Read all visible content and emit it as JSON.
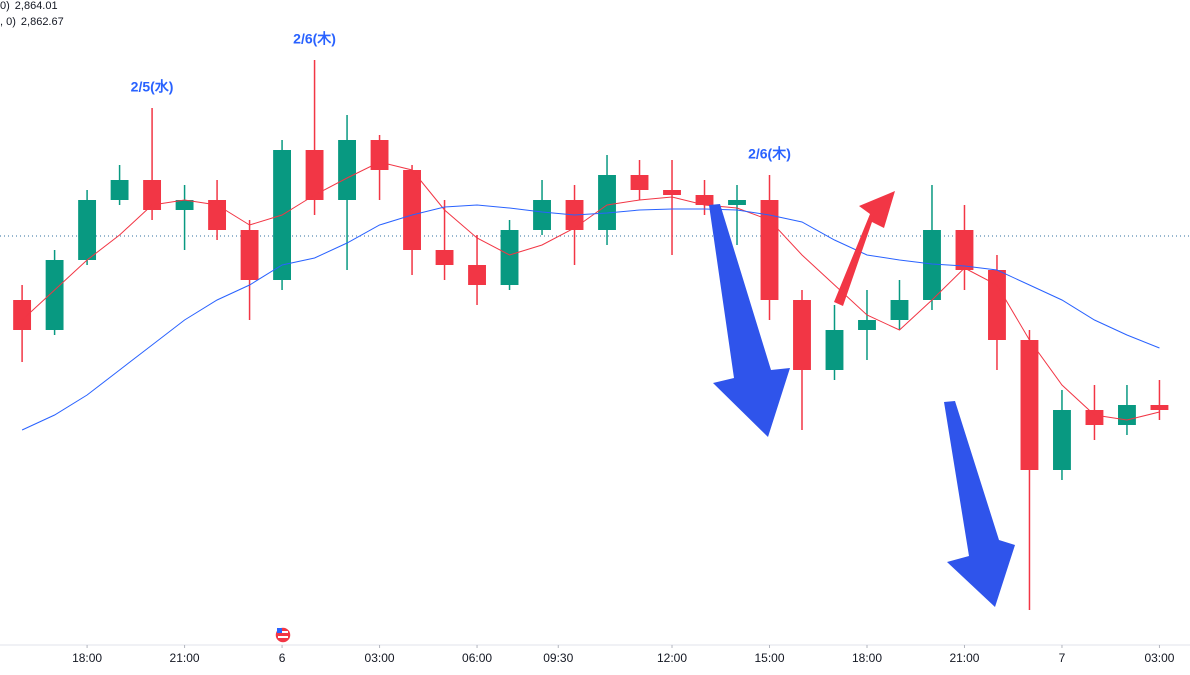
{
  "chart_data": {
    "type": "candlestick",
    "legend": [
      {
        "label": "0)",
        "value": "2,864.01",
        "color": "#f23645"
      },
      {
        "label": ", 0)",
        "value": "2,862.67",
        "color": "#2962ff"
      }
    ],
    "annotations": [
      {
        "text": "2/5(水)",
        "x": 5,
        "y": 2881.2
      },
      {
        "text": "2/6(木)",
        "x": 10,
        "y": 2886
      },
      {
        "text": "2/6(木)",
        "x": 24,
        "y": 2874.5
      }
    ],
    "up_color": "#089981",
    "down_color": "#f23645",
    "x": [
      1,
      2,
      3,
      4,
      5,
      6,
      7,
      8,
      9,
      10,
      11,
      12,
      13,
      14,
      15,
      16,
      17,
      18,
      19,
      20,
      21,
      22,
      23,
      24,
      25,
      26,
      27,
      28,
      29,
      30,
      31,
      32,
      33,
      34,
      35,
      36
    ],
    "candles": [
      [
        2862,
        2863.5,
        2855.8,
        2859
      ],
      [
        2859,
        2867,
        2858.5,
        2866
      ],
      [
        2866,
        2873,
        2865.5,
        2872
      ],
      [
        2872,
        2875.5,
        2871.5,
        2874
      ],
      [
        2874,
        2881.2,
        2870,
        2871
      ],
      [
        2871,
        2873.5,
        2867,
        2872
      ],
      [
        2872,
        2874,
        2868,
        2869
      ],
      [
        2869,
        2870,
        2860,
        2864
      ],
      [
        2864,
        2878,
        2863,
        2877
      ],
      [
        2877,
        2886,
        2870.5,
        2872
      ],
      [
        2872,
        2880.5,
        2865,
        2878
      ],
      [
        2878,
        2878.5,
        2872,
        2875
      ],
      [
        2875,
        2875.5,
        2864.5,
        2867
      ],
      [
        2867,
        2872,
        2864,
        2865.5
      ],
      [
        2865.5,
        2868.5,
        2861.5,
        2863.5
      ],
      [
        2863.5,
        2870,
        2863,
        2869
      ],
      [
        2869,
        2874,
        2868.5,
        2872
      ],
      [
        2872,
        2873.5,
        2865.5,
        2869
      ],
      [
        2869,
        2876.5,
        2867.5,
        2874.5
      ],
      [
        2874.5,
        2876,
        2872,
        2873
      ],
      [
        2873,
        2876,
        2866.5,
        2872.5
      ],
      [
        2872.5,
        2874,
        2870.5,
        2871.5
      ],
      [
        2871.5,
        2873.5,
        2867.5,
        2872
      ],
      [
        2872,
        2874.5,
        2860,
        2862
      ],
      [
        2862,
        2863,
        2849,
        2855
      ],
      [
        2855,
        2861.5,
        2854,
        2859
      ],
      [
        2859,
        2863,
        2856,
        2860
      ],
      [
        2860,
        2864,
        2859,
        2862
      ],
      [
        2862,
        2873.5,
        2861,
        2869
      ],
      [
        2869,
        2871.5,
        2863,
        2865
      ],
      [
        2865,
        2866.5,
        2855,
        2858
      ],
      [
        2858,
        2859,
        2831,
        2845
      ],
      [
        2845,
        2853,
        2844,
        2851
      ],
      [
        2851,
        2853.5,
        2848,
        2849.5
      ],
      [
        2849.5,
        2853.5,
        2848.5,
        2851.5
      ],
      [
        2851.5,
        2854,
        2850,
        2851
      ]
    ],
    "moving_averages": [
      {
        "color": "#f23645",
        "values": [
          2860,
          2863,
          2866,
          2868.5,
          2871.5,
          2872,
          2871.5,
          2869.5,
          2870.5,
          2872.5,
          2874.2,
          2875.8,
          2875,
          2871,
          2868.2,
          2866.5,
          2867.5,
          2869.2,
          2871.5,
          2872,
          2872.3,
          2871.5,
          2871.2,
          2870,
          2866.5,
          2863.5,
          2860.5,
          2859,
          2862,
          2865.2,
          2863.5,
          2858,
          2853.5,
          2850.5,
          2850,
          2850.8
        ]
      },
      {
        "color": "#2962ff",
        "values": [
          2849,
          2850.5,
          2852.5,
          2855,
          2857.5,
          2860,
          2862,
          2863.5,
          2865.5,
          2866.2,
          2867.7,
          2869.5,
          2870.5,
          2871.3,
          2871.5,
          2871.2,
          2870.8,
          2870.5,
          2870.7,
          2871,
          2871.1,
          2871.1,
          2871,
          2870.5,
          2869.8,
          2868,
          2866.5,
          2866,
          2865.6,
          2865.4,
          2865,
          2863.5,
          2862,
          2860,
          2858.5,
          2857.2
        ]
      }
    ],
    "price_line": 2868.4,
    "xlim": [
      0.32,
      36.94
    ],
    "ylim": [
      2828,
      2892
    ],
    "xticks": [
      {
        "value": 3,
        "label": "18:00"
      },
      {
        "value": 6,
        "label": "21:00"
      },
      {
        "value": 9,
        "label": "6"
      },
      {
        "value": 12,
        "label": "03:00"
      },
      {
        "value": 15,
        "label": "06:00"
      },
      {
        "value": 17.5,
        "label": "09:30"
      },
      {
        "value": 21,
        "label": "12:00"
      },
      {
        "value": 24,
        "label": "15:00"
      },
      {
        "value": 27,
        "label": "18:00"
      },
      {
        "value": 30,
        "label": "21:00"
      },
      {
        "value": 33,
        "label": "7"
      },
      {
        "value": 36,
        "label": "03:00"
      }
    ]
  }
}
